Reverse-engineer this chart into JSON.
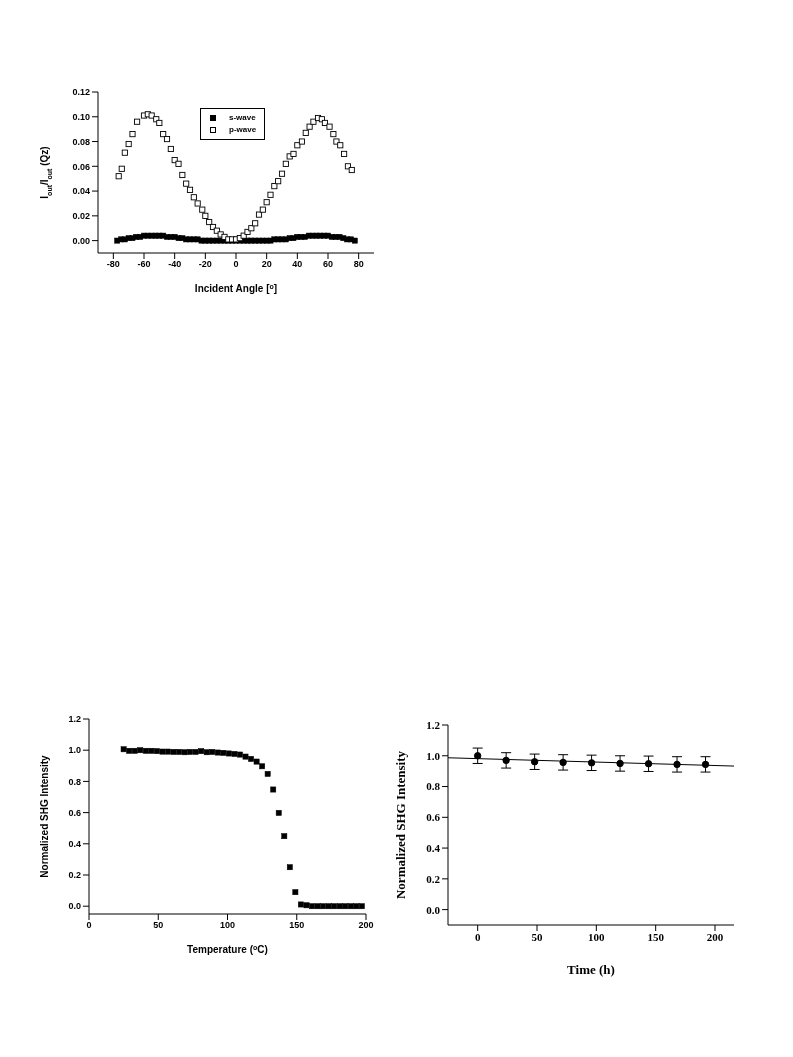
{
  "chart_data": [
    {
      "type": "scatter",
      "xlabel": "Incident Angle [$^{o}$]",
      "ylabel": "I$_{out}$/I$_{out}$ (Qz)",
      "marker": "square",
      "legend": "top",
      "xlim": [
        -90,
        90
      ],
      "xticks": [
        -80,
        -60,
        -40,
        -20,
        0,
        20,
        40,
        60,
        80
      ],
      "ylim": [
        -0.01,
        0.12
      ],
      "yticks": [
        {
          "value": 0,
          "label": "0.00"
        },
        {
          "value": 0.02,
          "label": "0.02"
        },
        {
          "value": 0.04,
          "label": "0.04"
        },
        {
          "value": 0.06,
          "label": "0.06"
        },
        {
          "value": 0.08,
          "label": "0.08"
        },
        {
          "value": 0.1,
          "label": "0.10"
        },
        {
          "value": 0.12,
          "label": "0.12"
        }
      ],
      "series": [
        {
          "name": "s-wave",
          "color": "#000000",
          "x": [
            -77.5,
            -75,
            -72.5,
            -70,
            -67.5,
            -65,
            -62.5,
            -60,
            -57.5,
            -55,
            -52.5,
            -50,
            -47.5,
            -45,
            -42.5,
            -40,
            -37.5,
            -35,
            -32.5,
            -30,
            -27.5,
            -25,
            -22.5,
            -20,
            -17.5,
            -15,
            -12.5,
            -10,
            -7.5,
            -5,
            -2.5,
            0,
            2.5,
            5,
            7.5,
            10,
            12.5,
            15,
            17.5,
            20,
            22.5,
            25,
            27.5,
            30,
            32.5,
            35,
            37.5,
            40,
            42.5,
            45,
            47.5,
            50,
            52.5,
            55,
            57.5,
            60,
            62.5,
            65,
            67.5,
            70,
            72.5,
            75,
            77.5
          ],
          "values": [
            0,
            0.001,
            0.001,
            0.002,
            0.002,
            0.003,
            0.003,
            0.004,
            0.004,
            0.004,
            0.004,
            0.004,
            0.004,
            0.003,
            0.003,
            0.003,
            0.002,
            0.002,
            0.001,
            0.001,
            0.001,
            0.001,
            0,
            0,
            0,
            0,
            0,
            0,
            0,
            0,
            0,
            0,
            0,
            0,
            0,
            0,
            0,
            0,
            0,
            0,
            0,
            0.001,
            0.001,
            0.001,
            0.001,
            0.002,
            0.002,
            0.003,
            0.003,
            0.003,
            0.004,
            0.004,
            0.004,
            0.004,
            0.004,
            0.004,
            0.003,
            0.003,
            0.003,
            0.002,
            0.001,
            0.001,
            0
          ]
        },
        {
          "name": "p-wave",
          "color": "#000000",
          "x": [
            -76.5,
            -74.5,
            -72.5,
            -70,
            -67.5,
            -64.5,
            -60,
            -57.5,
            -55,
            -52,
            -50,
            -47.5,
            -45,
            -42.5,
            -40,
            -37.5,
            -35,
            -32.5,
            -30,
            -27.5,
            -25,
            -22,
            -20,
            -17.5,
            -15,
            -12.5,
            -10,
            -7.5,
            -5,
            -2.5,
            0,
            2.5,
            5,
            7.5,
            10,
            12.5,
            15,
            17.5,
            20,
            22.5,
            25,
            27.5,
            30,
            32.5,
            35,
            37.5,
            40,
            43,
            45.5,
            48,
            50.5,
            53.5,
            56,
            58,
            61,
            63.5,
            65.5,
            68,
            70.5,
            73,
            75.5
          ],
          "values": [
            0.052,
            0.058,
            0.071,
            0.078,
            0.086,
            0.096,
            0.101,
            0.102,
            0.101,
            0.098,
            0.095,
            0.086,
            0.082,
            0.074,
            0.065,
            0.062,
            0.053,
            0.046,
            0.041,
            0.035,
            0.03,
            0.025,
            0.02,
            0.015,
            0.011,
            0.008,
            0.005,
            0.003,
            0.001,
            0.001,
            0.001,
            0.002,
            0.004,
            0.007,
            0.01,
            0.014,
            0.021,
            0.025,
            0.031,
            0.037,
            0.044,
            0.048,
            0.054,
            0.062,
            0.068,
            0.07,
            0.077,
            0.08,
            0.087,
            0.092,
            0.096,
            0.099,
            0.098,
            0.095,
            0.092,
            0.086,
            0.08,
            0.077,
            0.07,
            0.06,
            0.057
          ]
        }
      ]
    },
    {
      "type": "scatter",
      "xlabel": "Temperature ($^{o}$C)",
      "ylabel": "Normalized SHG Intensity",
      "marker": "square",
      "xlim": [
        0,
        200
      ],
      "xticks": [
        0,
        50,
        100,
        150,
        200
      ],
      "ylim": [
        -0.05,
        1.2
      ],
      "yticks": [
        {
          "value": 0,
          "label": "0.0"
        },
        {
          "value": 0.2,
          "label": "0.2"
        },
        {
          "value": 0.4,
          "label": "0.4"
        },
        {
          "value": 0.6,
          "label": "0.6"
        },
        {
          "value": 0.8,
          "label": "0.8"
        },
        {
          "value": 1,
          "label": "1.0"
        },
        {
          "value": 1.2,
          "label": "1.2"
        }
      ],
      "x": [
        25,
        29,
        33,
        37,
        41,
        45,
        49,
        53,
        57,
        61,
        65,
        69,
        73,
        77,
        81,
        85,
        89,
        93,
        97,
        101,
        105,
        109,
        113,
        117,
        121,
        125,
        129,
        133,
        137,
        141,
        145,
        149,
        153,
        157,
        161,
        165,
        169,
        173,
        177,
        181,
        185,
        189,
        193,
        197
      ],
      "series": [
        {
          "color": "#000000",
          "values": [
            1.006,
            0.996,
            0.996,
            1.0,
            0.996,
            0.996,
            0.994,
            0.991,
            0.991,
            0.989,
            0.989,
            0.987,
            0.989,
            0.989,
            0.994,
            0.987,
            0.989,
            0.985,
            0.983,
            0.979,
            0.976,
            0.972,
            0.959,
            0.944,
            0.927,
            0.897,
            0.848,
            0.748,
            0.598,
            0.449,
            0.25,
            0.09,
            0.011,
            0.006,
            0,
            0,
            0,
            0,
            0,
            0,
            0,
            0,
            0,
            0
          ]
        }
      ]
    },
    {
      "type": "scatter",
      "xlabel": "Time (h)",
      "ylabel": "Normalized SHG Intensity",
      "marker": "circle",
      "xlim": [
        -25,
        216
      ],
      "xticks": [
        0,
        50,
        100,
        150,
        200
      ],
      "ylim": [
        -0.1,
        1.2
      ],
      "yticks": [
        {
          "value": 0,
          "label": "0.0"
        },
        {
          "value": 0.2,
          "label": "0.2"
        },
        {
          "value": 0.4,
          "label": "0.4"
        },
        {
          "value": 0.6,
          "label": "0.6"
        },
        {
          "value": 0.8,
          "label": "0.8"
        },
        {
          "value": 1,
          "label": "1.0"
        },
        {
          "value": 1.2,
          "label": "1.2"
        }
      ],
      "series": [
        {
          "type": "line",
          "marker": "none",
          "color": "#000000",
          "x": [
            -25,
            216
          ],
          "values": [
            0.987,
            0.933
          ]
        },
        {
          "color": "#000000",
          "x": [
            0,
            24,
            48,
            72,
            96,
            120,
            144,
            168,
            192
          ],
          "values": [
            1.0,
            0.97,
            0.961,
            0.957,
            0.954,
            0.95,
            0.948,
            0.944,
            0.944
          ],
          "errors": [
            0.05,
            0.05,
            0.05,
            0.05,
            0.05,
            0.05,
            0.05,
            0.05,
            0.05
          ]
        }
      ]
    }
  ]
}
